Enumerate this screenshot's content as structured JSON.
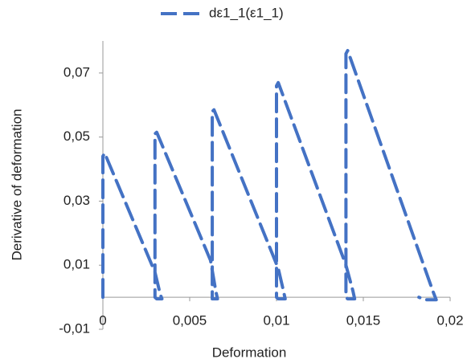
{
  "chart_data": {
    "type": "line",
    "xlabel": "Deformation",
    "ylabel": "Derivative of deformation",
    "x": [
      0,
      0,
      0.0001,
      0.003,
      0.0033,
      0.0034,
      0.0031,
      0.003,
      0.003,
      0.0031,
      0.0062,
      0.0065,
      0.0066,
      0.0063,
      0.0063,
      0.0063,
      0.0064,
      0.0101,
      0.0104,
      0.0105,
      0.0101,
      0.01,
      0.01,
      0.0101,
      0.014,
      0.0144,
      0.0145,
      0.0141,
      0.014,
      0.014,
      0.0141,
      0.019,
      0.0192,
      0.0186,
      0.0182
    ],
    "series": [
      {
        "name": "dε1_1(ε1_1)",
        "color": "#4472c4",
        "dashed": true,
        "values": [
          0,
          0.044,
          0.045,
          0.0078,
          0.001,
          -0.0005,
          -0.0005,
          0,
          0.051,
          0.0515,
          0.0115,
          0.002,
          -0.0005,
          -0.0005,
          0,
          0.058,
          0.0585,
          0.009,
          0.002,
          -0.0005,
          -0.0005,
          0,
          0.066,
          0.067,
          0.01,
          0.002,
          -0.0005,
          -0.0005,
          0,
          0.076,
          0.077,
          0.002,
          -0.0008,
          -0.0008,
          0
        ]
      }
    ],
    "xlim": [
      0,
      0.02
    ],
    "ylim": [
      -0.01,
      0.08
    ],
    "xticks": [
      0,
      {
        "value": 0.005,
        "label": "0,005"
      },
      {
        "value": 0.01,
        "label": "0,01"
      },
      {
        "value": 0.015,
        "label": "0,015"
      },
      {
        "value": 0.02,
        "label": "0,02"
      }
    ],
    "yticks": [
      {
        "value": -0.01,
        "label": "-0,01"
      },
      {
        "value": 0.01,
        "label": "0,01"
      },
      {
        "value": 0.03,
        "label": "0,03"
      },
      {
        "value": 0.05,
        "label": "0,05"
      },
      {
        "value": 0.07,
        "label": "0,07"
      }
    ],
    "legend": "top"
  }
}
